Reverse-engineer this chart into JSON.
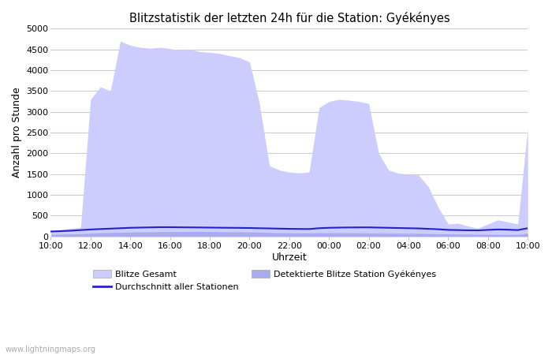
{
  "title": "Blitzstatistik der letzten 24h für die Station: Gyékényes",
  "xlabel": "Uhrzeit",
  "ylabel": "Anzahl pro Stunde",
  "ylim": [
    0,
    5000
  ],
  "yticks": [
    0,
    500,
    1000,
    1500,
    2000,
    2500,
    3000,
    3500,
    4000,
    4500,
    5000
  ],
  "xtick_labels": [
    "10:00",
    "12:00",
    "14:00",
    "16:00",
    "18:00",
    "20:00",
    "22:00",
    "00:00",
    "02:00",
    "04:00",
    "06:00",
    "08:00",
    "10:00"
  ],
  "background_color": "#ffffff",
  "fill_color_light": "#ccccff",
  "fill_color_dark": "#aaaaee",
  "line_color": "#2222cc",
  "watermark": "www.lightningmaps.org",
  "x_hours": [
    0.0,
    0.5,
    1.0,
    1.5,
    2.0,
    2.5,
    3.0,
    3.5,
    4.0,
    4.5,
    5.0,
    5.5,
    6.0,
    6.5,
    7.0,
    7.5,
    8.0,
    8.5,
    9.0,
    9.5,
    10.0,
    10.5,
    11.0,
    11.5,
    12.0,
    12.5,
    13.0,
    13.5,
    14.0,
    14.5,
    15.0,
    15.5,
    16.0,
    16.5,
    17.0,
    17.5,
    18.0,
    18.5,
    19.0,
    19.5,
    20.0,
    20.5,
    21.0,
    21.5,
    22.0,
    22.5,
    23.0,
    23.5,
    24.0
  ],
  "blitze_gesamt": [
    150,
    160,
    200,
    220,
    3300,
    3600,
    3500,
    4700,
    4600,
    4550,
    4530,
    4550,
    4520,
    4480,
    4500,
    4450,
    4430,
    4400,
    4350,
    4300,
    4200,
    3200,
    1700,
    1600,
    1550,
    1530,
    1550,
    3100,
    3250,
    3300,
    3280,
    3250,
    3200,
    2000,
    1600,
    1520,
    1500,
    1480,
    1200,
    700,
    300,
    320,
    250,
    200,
    300,
    400,
    350,
    300,
    2600
  ],
  "detektierte": [
    50,
    55,
    60,
    65,
    80,
    90,
    95,
    100,
    105,
    110,
    112,
    115,
    118,
    118,
    120,
    120,
    118,
    115,
    113,
    110,
    108,
    105,
    95,
    90,
    88,
    85,
    85,
    88,
    90,
    90,
    88,
    87,
    85,
    82,
    80,
    78,
    78,
    76,
    72,
    68,
    62,
    60,
    58,
    56,
    54,
    52,
    50,
    48,
    80
  ],
  "avg_stationen": [
    120,
    130,
    140,
    155,
    170,
    180,
    190,
    200,
    210,
    215,
    220,
    225,
    225,
    222,
    220,
    218,
    215,
    212,
    210,
    208,
    205,
    200,
    195,
    190,
    185,
    182,
    180,
    200,
    210,
    215,
    218,
    220,
    220,
    215,
    210,
    205,
    200,
    195,
    185,
    175,
    160,
    155,
    150,
    148,
    160,
    170,
    165,
    155,
    200
  ],
  "legend_labels": [
    "Blitze Gesamt",
    "Durchschnitt aller Stationen",
    "Detektierte Blitze Station Gyékényes"
  ]
}
